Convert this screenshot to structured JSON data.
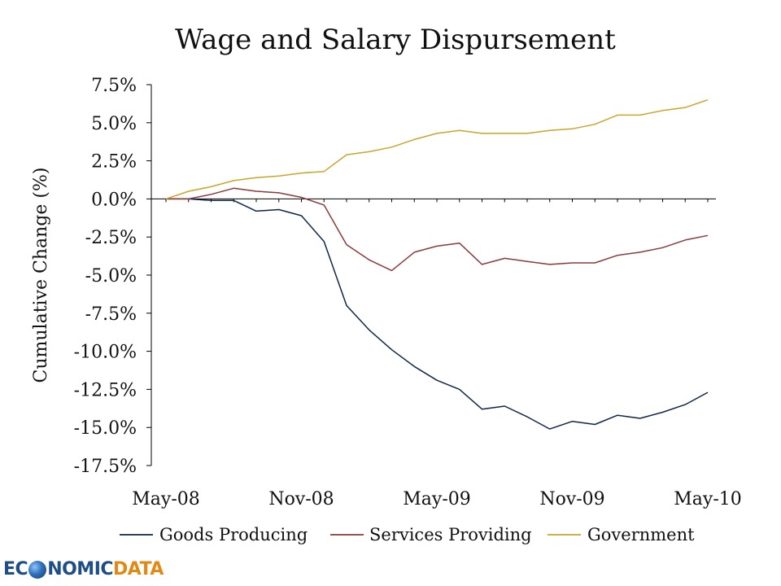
{
  "chart_data": {
    "type": "line",
    "title": "Wage and Salary Dispursement",
    "ylabel": "Cumulative Change (%)",
    "xlabel": "",
    "ylim": [
      -17.5,
      7.5
    ],
    "yticks": [
      7.5,
      5.0,
      2.5,
      0.0,
      -2.5,
      -5.0,
      -7.5,
      -10.0,
      -12.5,
      -15.0,
      -17.5
    ],
    "ytick_labels": [
      "7.5%",
      "5.0%",
      "2.5%",
      "0.0%",
      "-2.5%",
      "-5.0%",
      "-7.5%",
      "-10.0%",
      "-12.5%",
      "-15.0%",
      "-17.5%"
    ],
    "x_index_range": [
      0,
      24
    ],
    "xtick_labels": [
      {
        "label": "May-08",
        "index": 0
      },
      {
        "label": "Nov-08",
        "index": 6
      },
      {
        "label": "May-09",
        "index": 12
      },
      {
        "label": "Nov-09",
        "index": 18
      },
      {
        "label": "May-10",
        "index": 24
      }
    ],
    "x": [
      "May-08",
      "Jun-08",
      "Jul-08",
      "Aug-08",
      "Sep-08",
      "Oct-08",
      "Nov-08",
      "Dec-08",
      "Jan-09",
      "Feb-09",
      "Mar-09",
      "Apr-09",
      "May-09",
      "Jun-09",
      "Jul-09",
      "Aug-09",
      "Sep-09",
      "Oct-09",
      "Nov-09",
      "Dec-09",
      "Jan-10",
      "Feb-10",
      "Mar-10",
      "Apr-10",
      "May-10"
    ],
    "legend_position": "bottom",
    "series": [
      {
        "name": "Goods Producing",
        "color": "#0f2647",
        "values": [
          0.0,
          0.0,
          -0.1,
          -0.1,
          -0.8,
          -0.7,
          -1.1,
          -2.8,
          -7.0,
          -8.6,
          -9.9,
          -11.0,
          -11.9,
          -12.5,
          -13.8,
          -13.6,
          -14.3,
          -15.1,
          -14.6,
          -14.8,
          -14.2,
          -14.4,
          -14.0,
          -13.5,
          -12.7
        ]
      },
      {
        "name": "Services Providing",
        "color": "#8b3a3a",
        "values": [
          0.0,
          0.0,
          0.3,
          0.7,
          0.5,
          0.4,
          0.1,
          -0.4,
          -3.0,
          -4.0,
          -4.7,
          -3.5,
          -3.1,
          -2.9,
          -4.3,
          -3.9,
          -4.1,
          -4.3,
          -4.2,
          -4.2,
          -3.7,
          -3.5,
          -3.2,
          -2.7,
          -2.4
        ]
      },
      {
        "name": "Government",
        "color": "#c9a52a",
        "values": [
          0.0,
          0.5,
          0.8,
          1.2,
          1.4,
          1.5,
          1.7,
          1.8,
          2.9,
          3.1,
          3.4,
          3.9,
          4.3,
          4.5,
          4.3,
          4.3,
          4.3,
          4.5,
          4.6,
          4.9,
          5.5,
          5.5,
          5.8,
          6.0,
          6.5
        ]
      }
    ]
  },
  "logo": {
    "part1": "EC",
    "part2": "NOMIC",
    "part3": "DATA"
  }
}
